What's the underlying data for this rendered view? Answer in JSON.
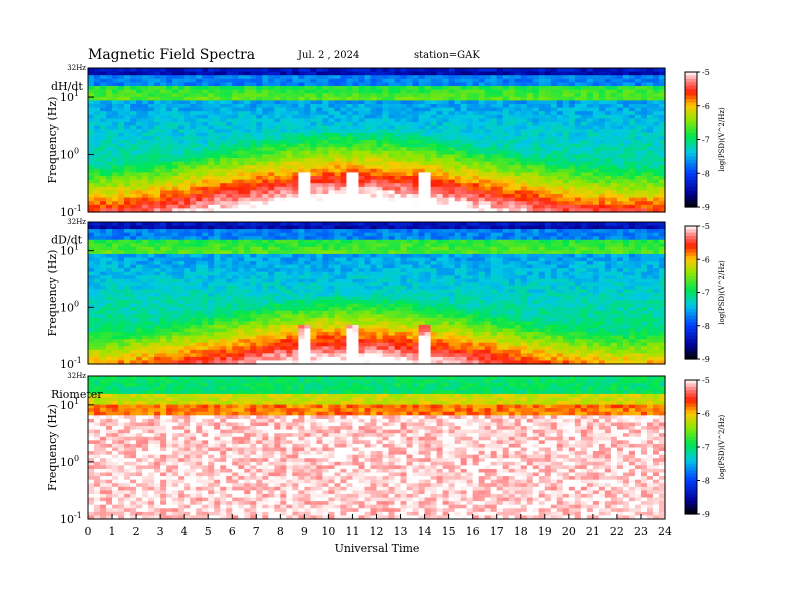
{
  "header": {
    "title": "Magnetic  Field  Spectra",
    "date": "Jul.  2  , 2024",
    "station": "station=GAK"
  },
  "chart_data": [
    {
      "type": "heatmap",
      "panel_label": "dH/dt",
      "top_label": "32Hz",
      "ylabel": "Frequency  (Hz)",
      "yscale": "log",
      "ylim": [
        0.1,
        32
      ],
      "y_ticks": [
        {
          "base": "10",
          "exp": "-1",
          "value": 0.1
        },
        {
          "base": "10",
          "exp": "0",
          "value": 1
        },
        {
          "base": "10",
          "exp": "1",
          "value": 10
        }
      ],
      "xlim": [
        0,
        24
      ],
      "colorbar": {
        "label": "log(PSD)(V^2/Hz)",
        "range": [
          -9,
          -5
        ],
        "ticks": [
          "-5",
          "-6",
          "-7",
          "-8",
          "-9"
        ]
      },
      "features": {
        "noise_floor": "red below ~1 Hz",
        "quiet_gap_hours": [
          9,
          11,
          14
        ],
        "line_hz": 8
      }
    },
    {
      "type": "heatmap",
      "panel_label": "dD/dt",
      "top_label": "32Hz",
      "ylabel": "Frequency  (Hz)",
      "yscale": "log",
      "ylim": [
        0.1,
        32
      ],
      "y_ticks": [
        {
          "base": "10",
          "exp": "-1",
          "value": 0.1
        },
        {
          "base": "10",
          "exp": "0",
          "value": 1
        },
        {
          "base": "10",
          "exp": "1",
          "value": 10
        }
      ],
      "xlim": [
        0,
        24
      ],
      "colorbar": {
        "label": "log(PSD)(V^2/Hz)",
        "range": [
          -9,
          -5
        ],
        "ticks": [
          "-5",
          "-6",
          "-7",
          "-8",
          "-9"
        ]
      },
      "features": {
        "noise_floor": "red below ~0.7 Hz",
        "quiet_gap_hours": [
          9,
          11,
          14
        ],
        "line_hz": 8
      }
    },
    {
      "type": "heatmap",
      "panel_label": "Riometer",
      "top_label": "32Hz",
      "ylabel": "Frequency  (Hz)",
      "yscale": "log",
      "ylim": [
        0.1,
        32
      ],
      "y_ticks": [
        {
          "base": "10",
          "exp": "-1",
          "value": 0.1
        },
        {
          "base": "10",
          "exp": "0",
          "value": 1
        },
        {
          "base": "10",
          "exp": "1",
          "value": 10
        }
      ],
      "xlim": [
        0,
        24
      ],
      "xlabel": "Universal  Time",
      "x_ticks": [
        "0",
        "1",
        "2",
        "3",
        "4",
        "5",
        "6",
        "7",
        "8",
        "9",
        "10",
        "11",
        "12",
        "13",
        "14",
        "15",
        "16",
        "17",
        "18",
        "19",
        "20",
        "21",
        "22",
        "23",
        "24"
      ],
      "colorbar": {
        "label": "log(PSD)(V^2/Hz)",
        "range": [
          -9,
          -5
        ],
        "ticks": [
          "-5",
          "-6",
          "-7",
          "-8",
          "-9"
        ]
      },
      "features": {
        "band_hz": [
          6,
          32
        ],
        "below_band": "white"
      }
    }
  ]
}
